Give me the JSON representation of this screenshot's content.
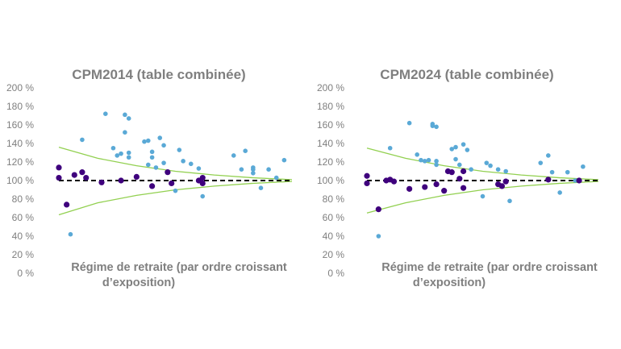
{
  "chart_data": [
    {
      "type": "scatter",
      "title": "CPM2014 (table combinée)",
      "xlabel": [
        "Régime de retraite (par ordre croissant",
        "d’exposition)"
      ],
      "ylabel": "",
      "ylim": [
        0,
        200
      ],
      "yticks": [
        "0 %",
        "20 %",
        "40 %",
        "60 %",
        "80 %",
        "100 %",
        "120 %",
        "140 %",
        "160 %",
        "180 %",
        "200 %"
      ],
      "grid": false,
      "xlim": [
        0,
        60
      ],
      "colors": {
        "blue": "#5aa9d6",
        "purple": "#3f007d",
        "band": "#92d050",
        "reference": "#000000"
      },
      "series": [
        {
          "color": "blue",
          "points": [
            [
              3,
              42
            ],
            [
              6,
              144
            ],
            [
              12,
              172
            ],
            [
              14,
              135
            ],
            [
              15,
              127
            ],
            [
              16,
              129
            ],
            [
              17,
              152
            ],
            [
              17,
              171
            ],
            [
              18,
              167
            ],
            [
              18,
              130
            ],
            [
              18,
              125
            ],
            [
              22,
              142
            ],
            [
              23,
              143
            ],
            [
              23,
              117
            ],
            [
              24,
              131
            ],
            [
              24,
              125
            ],
            [
              25,
              114
            ],
            [
              26,
              146
            ],
            [
              27,
              138
            ],
            [
              27,
              119
            ],
            [
              30,
              89
            ],
            [
              31,
              133
            ],
            [
              32,
              121
            ],
            [
              34,
              118
            ],
            [
              36,
              113
            ],
            [
              37,
              83
            ],
            [
              45,
              127
            ],
            [
              47,
              112
            ],
            [
              48,
              132
            ],
            [
              50,
              108
            ],
            [
              50,
              114
            ],
            [
              50,
              112
            ],
            [
              52,
              92
            ],
            [
              54,
              112
            ],
            [
              56,
              103
            ],
            [
              58,
              122
            ]
          ]
        },
        {
          "color": "purple",
          "points": [
            [
              0,
              114
            ],
            [
              0,
              103
            ],
            [
              2,
              74
            ],
            [
              4,
              106
            ],
            [
              6,
              109
            ],
            [
              7,
              103
            ],
            [
              11,
              98
            ],
            [
              16,
              100
            ],
            [
              20,
              104
            ],
            [
              24,
              94
            ],
            [
              28,
              109
            ],
            [
              29,
              97
            ],
            [
              36,
              100
            ],
            [
              37,
              97
            ],
            [
              37,
              103
            ]
          ]
        }
      ],
      "reference_y": 100,
      "band_upper": [
        [
          0,
          136
        ],
        [
          10,
          124
        ],
        [
          20,
          116
        ],
        [
          30,
          110
        ],
        [
          40,
          106
        ],
        [
          50,
          103
        ],
        [
          60,
          101
        ]
      ],
      "band_lower": [
        [
          0,
          63
        ],
        [
          10,
          76
        ],
        [
          20,
          84
        ],
        [
          30,
          90
        ],
        [
          40,
          94
        ],
        [
          50,
          97
        ],
        [
          60,
          99
        ]
      ]
    },
    {
      "type": "scatter",
      "title": "CPM2024 (table combinée)",
      "xlabel": [
        "Régime de retraite (par ordre croissant",
        "d’exposition)"
      ],
      "ylabel": "",
      "ylim": [
        0,
        200
      ],
      "yticks": [
        "0 %",
        "20 %",
        "40 %",
        "60 %",
        "80 %",
        "100 %",
        "120 %",
        "140 %",
        "160 %",
        "180 %",
        "200 %"
      ],
      "grid": false,
      "xlim": [
        0,
        60
      ],
      "colors": {
        "blue": "#5aa9d6",
        "purple": "#3f007d",
        "band": "#92d050",
        "reference": "#000000"
      },
      "series": [
        {
          "color": "blue",
          "points": [
            [
              3,
              40
            ],
            [
              6,
              135
            ],
            [
              11,
              162
            ],
            [
              13,
              128
            ],
            [
              14,
              122
            ],
            [
              15,
              121
            ],
            [
              16,
              122
            ],
            [
              17,
              159
            ],
            [
              17,
              161
            ],
            [
              18,
              158
            ],
            [
              18,
              121
            ],
            [
              18,
              117
            ],
            [
              22,
              134
            ],
            [
              23,
              136
            ],
            [
              23,
              123
            ],
            [
              24,
              117
            ],
            [
              25,
              139
            ],
            [
              26,
              133
            ],
            [
              27,
              112
            ],
            [
              30,
              83
            ],
            [
              31,
              119
            ],
            [
              32,
              116
            ],
            [
              34,
              112
            ],
            [
              36,
              110
            ],
            [
              37,
              78
            ],
            [
              45,
              119
            ],
            [
              47,
              127
            ],
            [
              48,
              109
            ],
            [
              50,
              87
            ],
            [
              52,
              109
            ],
            [
              54,
              100
            ],
            [
              56,
              115
            ]
          ]
        },
        {
          "color": "purple",
          "points": [
            [
              0,
              105
            ],
            [
              0,
              97
            ],
            [
              3,
              69
            ],
            [
              5,
              100
            ],
            [
              6,
              101
            ],
            [
              7,
              99
            ],
            [
              11,
              91
            ],
            [
              15,
              93
            ],
            [
              18,
              96
            ],
            [
              20,
              89
            ],
            [
              21,
              110
            ],
            [
              22,
              109
            ],
            [
              24,
              102
            ],
            [
              25,
              110
            ],
            [
              25,
              92
            ],
            [
              34,
              96
            ],
            [
              35,
              94
            ],
            [
              36,
              99
            ],
            [
              47,
              101
            ],
            [
              55,
              100
            ]
          ]
        }
      ],
      "reference_y": 100,
      "band_upper": [
        [
          0,
          135
        ],
        [
          10,
          124
        ],
        [
          20,
          116
        ],
        [
          30,
          110
        ],
        [
          40,
          106
        ],
        [
          50,
          103
        ],
        [
          60,
          101
        ]
      ],
      "band_lower": [
        [
          0,
          65
        ],
        [
          10,
          76
        ],
        [
          20,
          84
        ],
        [
          30,
          90
        ],
        [
          40,
          94
        ],
        [
          50,
          97
        ],
        [
          60,
          99
        ]
      ]
    }
  ]
}
